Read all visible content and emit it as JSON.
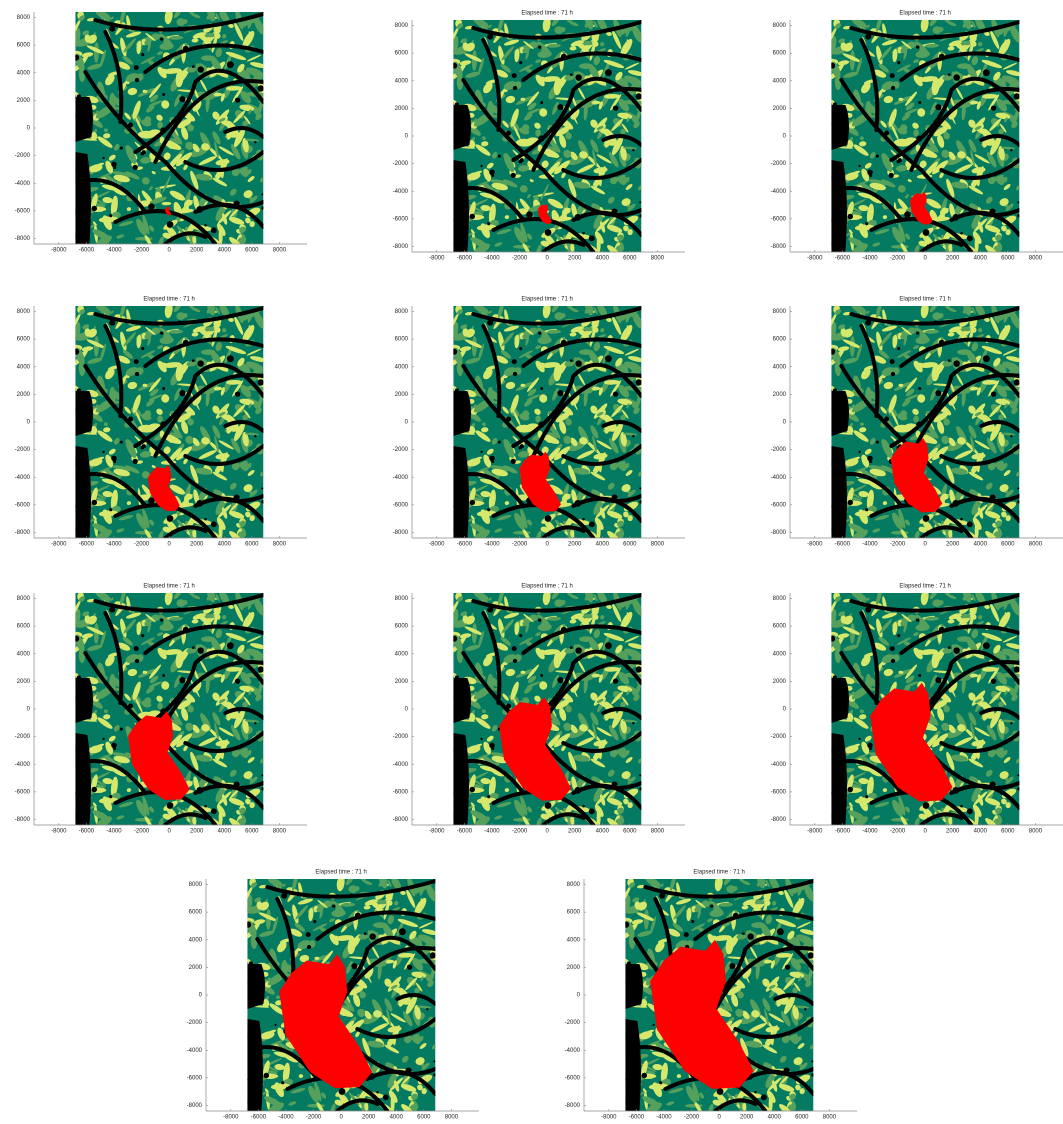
{
  "chart_data": [
    {
      "type": "map",
      "xlim": [
        -9800,
        10000
      ],
      "ylim": [
        -8400,
        8400
      ],
      "xticks": [
        -8000,
        -6000,
        -4000,
        -2000,
        0,
        2000,
        4000,
        6000,
        8000
      ],
      "yticks": [
        8000,
        6000,
        4000,
        2000,
        0,
        -2000,
        -4000,
        -6000,
        -8000
      ]
    },
    {
      "type": "map",
      "title": "Elapsed time : 71 h",
      "xlim": [
        -9800,
        10000
      ],
      "ylim": [
        -8400,
        8400
      ],
      "xticks": [
        -8000,
        -6000,
        -4000,
        -2000,
        0,
        2000,
        4000,
        6000,
        8000
      ],
      "yticks": [
        8000,
        6000,
        4000,
        2000,
        0,
        -2000,
        -4000,
        -6000,
        -8000
      ]
    },
    {
      "type": "map",
      "title": "Elapsed time : 71 h",
      "xlim": [
        -9800,
        10000
      ],
      "ylim": [
        -8400,
        8400
      ],
      "xticks": [
        -8000,
        -6000,
        -4000,
        -2000,
        0,
        2000,
        4000,
        6000,
        8000
      ],
      "yticks": [
        8000,
        6000,
        4000,
        2000,
        0,
        -2000,
        -4000,
        -6000,
        -8000
      ]
    },
    {
      "type": "map",
      "title": "Elapsed time : 71 h",
      "xlim": [
        -9800,
        10000
      ],
      "ylim": [
        -8400,
        8400
      ],
      "xticks": [
        -8000,
        -6000,
        -4000,
        -2000,
        0,
        2000,
        4000,
        6000,
        8000
      ],
      "yticks": [
        8000,
        6000,
        4000,
        2000,
        0,
        -2000,
        -4000,
        -6000,
        -8000
      ]
    },
    {
      "type": "map",
      "title": "Elapsed time : 71 h",
      "xlim": [
        -9800,
        10000
      ],
      "ylim": [
        -8400,
        8400
      ],
      "xticks": [
        -8000,
        -6000,
        -4000,
        -2000,
        0,
        2000,
        4000,
        6000,
        8000
      ],
      "yticks": [
        8000,
        6000,
        4000,
        2000,
        0,
        -2000,
        -4000,
        -6000,
        -8000
      ]
    },
    {
      "type": "map",
      "title": "Elapsed time : 71 h",
      "xlim": [
        -9800,
        10000
      ],
      "ylim": [
        -8400,
        8400
      ],
      "xticks": [
        -8000,
        -6000,
        -4000,
        -2000,
        0,
        2000,
        4000,
        6000,
        8000
      ],
      "yticks": [
        8000,
        6000,
        4000,
        2000,
        0,
        -2000,
        -4000,
        -6000,
        -8000
      ]
    },
    {
      "type": "map",
      "title": "Elapsed time : 71 h",
      "xlim": [
        -9800,
        10000
      ],
      "ylim": [
        -8400,
        8400
      ],
      "xticks": [
        -8000,
        -6000,
        -4000,
        -2000,
        0,
        2000,
        4000,
        6000,
        8000
      ],
      "yticks": [
        8000,
        6000,
        4000,
        2000,
        0,
        -2000,
        -4000,
        -6000,
        -8000
      ]
    },
    {
      "type": "map",
      "title": "Elapsed time : 71 h",
      "xlim": [
        -9800,
        10000
      ],
      "ylim": [
        -8400,
        8400
      ],
      "xticks": [
        -8000,
        -6000,
        -4000,
        -2000,
        0,
        2000,
        4000,
        6000,
        8000
      ],
      "yticks": [
        8000,
        6000,
        4000,
        2000,
        0,
        -2000,
        -4000,
        -6000,
        -8000
      ]
    },
    {
      "type": "map",
      "title": "Elapsed time : 71 h",
      "xlim": [
        -9800,
        10000
      ],
      "ylim": [
        -8400,
        8400
      ],
      "xticks": [
        -8000,
        -6000,
        -4000,
        -2000,
        0,
        2000,
        4000,
        6000,
        8000
      ],
      "yticks": [
        8000,
        6000,
        4000,
        2000,
        0,
        -2000,
        -4000,
        -6000,
        -8000
      ]
    },
    {
      "type": "map",
      "title": "Elapsed time : 71 h",
      "xlim": [
        -9800,
        10000
      ],
      "ylim": [
        -8400,
        8400
      ],
      "xticks": [
        -8000,
        -6000,
        -4000,
        -2000,
        0,
        2000,
        4000,
        6000,
        8000
      ],
      "yticks": [
        8000,
        6000,
        4000,
        2000,
        0,
        -2000,
        -4000,
        -6000,
        -8000
      ]
    },
    {
      "type": "map",
      "title": "Elapsed time : 71 h",
      "xlim": [
        -9800,
        10000
      ],
      "ylim": [
        -8400,
        8400
      ],
      "xticks": [
        -8000,
        -6000,
        -4000,
        -2000,
        0,
        2000,
        4000,
        6000,
        8000
      ],
      "yticks": [
        8000,
        6000,
        4000,
        2000,
        0,
        -2000,
        -4000,
        -6000,
        -8000
      ]
    }
  ]
}
